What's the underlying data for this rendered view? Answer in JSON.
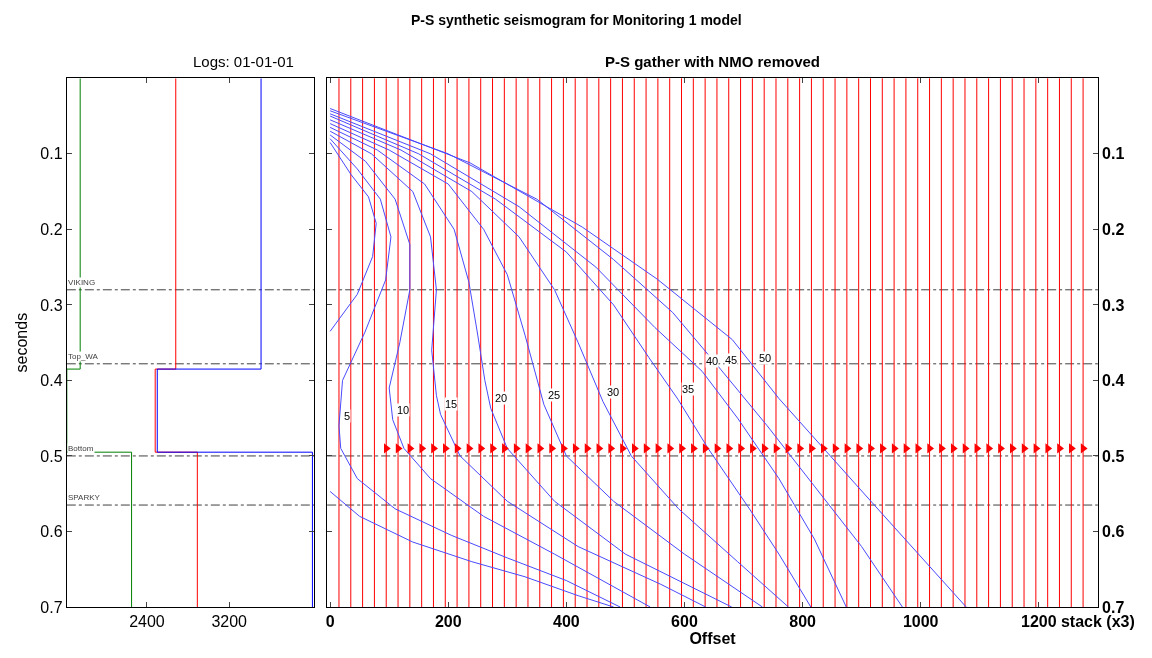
{
  "chart_data": [
    {
      "type": "line",
      "title": "Logs: 01-01-01",
      "ylabel": "seconds",
      "annotations": [
        "P-S synthetic seismogram for Monitoring 1 model"
      ],
      "xlim": [
        1620,
        4030
      ],
      "xticks": [
        2400,
        3200
      ],
      "ylim": [
        0.7,
        0.0
      ],
      "yticks": [
        0.1,
        0.2,
        0.3,
        0.4,
        0.5,
        0.6,
        0.7
      ],
      "grid": false,
      "series": [
        {
          "color": "#008000",
          "x": [
            1750,
            1750,
            1620,
            1620,
            2250,
            2250
          ],
          "values": [
            0.0,
            0.385,
            0.385,
            0.495,
            0.495,
            0.7
          ]
        },
        {
          "color": "#ff0000",
          "x": [
            2680,
            2680,
            2480,
            2480,
            2890,
            2890
          ],
          "values": [
            0.0,
            0.385,
            0.385,
            0.495,
            0.495,
            0.7
          ]
        },
        {
          "color": "#0000ff",
          "x": [
            3510,
            3510,
            2500,
            2500,
            4010,
            4010
          ],
          "values": [
            0.0,
            0.385,
            0.385,
            0.495,
            0.495,
            0.7
          ]
        }
      ],
      "ref_lines": [
        {
          "axis": "y",
          "value": 0.28,
          "label": "VIKING",
          "color": "#404040",
          "line_style": "dashdot"
        },
        {
          "axis": "y",
          "value": 0.378,
          "label": "Top_WA",
          "color": "#404040",
          "line_style": "dashdot"
        },
        {
          "axis": "y",
          "value": 0.5,
          "label": "Bottom",
          "color": "#404040",
          "line_style": "dashdot"
        },
        {
          "axis": "y",
          "value": 0.565,
          "label": "SPARKY",
          "color": "#404040",
          "line_style": "dashdot"
        }
      ]
    },
    {
      "type": "line",
      "title": "P-S gather with NMO removed",
      "xlabel": "Offset",
      "xlim": [
        -5,
        1300
      ],
      "xticks": [
        0,
        200,
        400,
        600,
        800,
        1000,
        1200,
        {
          "value": 1300,
          "label": "stack (x3)"
        }
      ],
      "ylim": [
        0.7,
        0.0
      ],
      "yticks": [
        0.1,
        0.2,
        0.3,
        0.4,
        0.5,
        0.6,
        0.7
      ],
      "grid": false,
      "annotations": [
        {
          "text": "5",
          "x": 17,
          "y": 0.46
        },
        {
          "text": "10",
          "x": 106,
          "y": 0.452
        },
        {
          "text": "15",
          "x": 187,
          "y": 0.445
        },
        {
          "text": "20",
          "x": 272,
          "y": 0.437
        },
        {
          "text": "25",
          "x": 362,
          "y": 0.432
        },
        {
          "text": "30",
          "x": 462,
          "y": 0.428
        },
        {
          "text": "35",
          "x": 589,
          "y": 0.425
        },
        {
          "text": "40",
          "x": 630,
          "y": 0.388
        },
        {
          "text": "45",
          "x": 662,
          "y": 0.386
        },
        {
          "text": "50",
          "x": 719,
          "y": 0.383
        }
      ],
      "series": [
        {
          "color": "#4a4aff",
          "x": [
            0,
            35,
            65,
            78,
            72,
            46,
            0,
            null,
            0,
            50,
            140,
            240,
            330,
            420,
            480
          ],
          "values": [
            0.085,
            0.127,
            0.157,
            0.192,
            0.236,
            0.286,
            0.335,
            null,
            0.547,
            0.58,
            0.614,
            0.64,
            0.66,
            0.685,
            0.7
          ]
        },
        {
          "color": "#4a4aff",
          "x": [
            0,
            46,
            85,
            103,
            94,
            59,
            21,
            15,
            18,
            46,
            110,
            205,
            300,
            400,
            491
          ],
          "values": [
            0.08,
            0.12,
            0.16,
            0.21,
            0.267,
            0.336,
            0.4,
            0.46,
            0.49,
            0.53,
            0.57,
            0.605,
            0.635,
            0.665,
            0.7
          ]
        },
        {
          "color": "#4a4aff",
          "x": [
            0,
            60,
            110,
            135,
            135,
            118,
            100,
            106,
            125,
            170,
            260,
            380,
            542
          ],
          "values": [
            0.075,
            0.11,
            0.16,
            0.22,
            0.28,
            0.35,
            0.41,
            0.452,
            0.49,
            0.53,
            0.58,
            0.63,
            0.7
          ]
        },
        {
          "color": "#4a4aff",
          "x": [
            0,
            70,
            140,
            170,
            180,
            172,
            180,
            187,
            220,
            300,
            420,
            560,
            636
          ],
          "values": [
            0.07,
            0.1,
            0.15,
            0.21,
            0.28,
            0.36,
            0.42,
            0.445,
            0.5,
            0.56,
            0.62,
            0.67,
            0.7
          ]
        },
        {
          "color": "#4a4aff",
          "x": [
            0,
            80,
            160,
            210,
            235,
            250,
            262,
            272,
            300,
            380,
            500,
            680
          ],
          "values": [
            0.065,
            0.095,
            0.14,
            0.2,
            0.27,
            0.34,
            0.4,
            0.437,
            0.49,
            0.56,
            0.63,
            0.7
          ]
        },
        {
          "color": "#4a4aff",
          "x": [
            0,
            100,
            200,
            260,
            300,
            330,
            362,
            400,
            480,
            600,
            732
          ],
          "values": [
            0.06,
            0.095,
            0.14,
            0.2,
            0.26,
            0.34,
            0.432,
            0.5,
            0.56,
            0.63,
            0.7
          ]
        },
        {
          "color": "#4a4aff",
          "x": [
            0,
            120,
            240,
            320,
            380,
            420,
            462,
            510,
            590,
            690,
            776
          ],
          "values": [
            0.055,
            0.095,
            0.15,
            0.21,
            0.28,
            0.35,
            0.428,
            0.5,
            0.57,
            0.64,
            0.7
          ]
        },
        {
          "color": "#4a4aff",
          "x": [
            0,
            150,
            280,
            400,
            480,
            540,
            589,
            640,
            710,
            760,
            814
          ],
          "values": [
            0.05,
            0.1,
            0.16,
            0.23,
            0.3,
            0.37,
            0.425,
            0.49,
            0.57,
            0.63,
            0.7
          ]
        },
        {
          "color": "#4a4aff",
          "x": [
            0,
            170,
            320,
            450,
            550,
            630,
            690,
            760,
            820,
            874
          ],
          "values": [
            0.047,
            0.1,
            0.17,
            0.25,
            0.33,
            0.388,
            0.45,
            0.53,
            0.61,
            0.7
          ]
        },
        {
          "color": "#4a4aff",
          "x": [
            0,
            200,
            350,
            480,
            580,
            662,
            740,
            820,
            900,
            969
          ],
          "values": [
            0.043,
            0.1,
            0.16,
            0.24,
            0.31,
            0.386,
            0.46,
            0.54,
            0.62,
            0.7
          ]
        },
        {
          "color": "#4a4aff",
          "x": [
            0,
            237,
            427,
            554,
            681,
            760,
            918,
            1077
          ],
          "values": [
            0.04,
            0.112,
            0.197,
            0.266,
            0.346,
            0.424,
            0.562,
            0.7
          ]
        },
        {
          "type": "scatter",
          "marker": "triangle",
          "color": "#ff0000",
          "x": [
            95,
            115,
            135,
            155,
            175,
            195,
            215,
            235,
            255,
            275,
            295,
            315,
            335,
            355,
            375,
            395,
            415,
            435,
            455,
            475,
            495,
            515,
            535,
            555,
            575,
            595,
            615,
            635,
            655,
            675,
            695,
            715,
            735,
            755,
            775,
            795,
            815,
            835,
            855,
            875,
            895,
            915,
            935,
            955,
            975,
            995,
            1015,
            1035,
            1055,
            1075,
            1095,
            1115,
            1135,
            1155,
            1175,
            1195,
            1215,
            1235,
            1255,
            1275
          ],
          "values": [
            0.49,
            0.49,
            0.49,
            0.49,
            0.49,
            0.49,
            0.49,
            0.49,
            0.49,
            0.49,
            0.49,
            0.49,
            0.49,
            0.49,
            0.49,
            0.49,
            0.49,
            0.49,
            0.49,
            0.49,
            0.49,
            0.49,
            0.49,
            0.49,
            0.49,
            0.49,
            0.49,
            0.49,
            0.49,
            0.49,
            0.49,
            0.49,
            0.49,
            0.49,
            0.49,
            0.49,
            0.49,
            0.49,
            0.49,
            0.49,
            0.49,
            0.49,
            0.49,
            0.49,
            0.49,
            0.49,
            0.49,
            0.49,
            0.49,
            0.49,
            0.49,
            0.49,
            0.49,
            0.49,
            0.49,
            0.49,
            0.49,
            0.49,
            0.49,
            0.49
          ]
        }
      ],
      "ref_lines": [
        {
          "axis": "y",
          "value": 0.28,
          "color": "#404040",
          "line_style": "dashdot"
        },
        {
          "axis": "y",
          "value": 0.378,
          "color": "#404040",
          "line_style": "dashdot"
        },
        {
          "axis": "y",
          "value": 0.5,
          "color": "#404040",
          "line_style": "dashdot"
        },
        {
          "axis": "y",
          "value": 0.565,
          "color": "#404040",
          "line_style": "dashdot"
        },
        {
          "axis": "x",
          "value": 15,
          "color": "#ff0000"
        },
        {
          "axis": "x",
          "value": 35,
          "color": "#ff0000"
        },
        {
          "axis": "x",
          "value": 55,
          "color": "#ff0000"
        },
        {
          "axis": "x",
          "value": 75,
          "color": "#ff0000"
        },
        {
          "axis": "x",
          "value": 95,
          "color": "#ff0000"
        },
        {
          "axis": "x",
          "value": 115,
          "color": "#ff0000"
        },
        {
          "axis": "x",
          "value": 135,
          "color": "#ff0000"
        },
        {
          "axis": "x",
          "value": 155,
          "color": "#ff0000"
        },
        {
          "axis": "x",
          "value": 175,
          "color": "#ff0000"
        },
        {
          "axis": "x",
          "value": 195,
          "color": "#ff0000"
        },
        {
          "axis": "x",
          "value": 215,
          "color": "#ff0000"
        },
        {
          "axis": "x",
          "value": 235,
          "color": "#ff0000"
        },
        {
          "axis": "x",
          "value": 255,
          "color": "#ff0000"
        },
        {
          "axis": "x",
          "value": 275,
          "color": "#ff0000"
        },
        {
          "axis": "x",
          "value": 295,
          "color": "#ff0000"
        },
        {
          "axis": "x",
          "value": 315,
          "color": "#ff0000"
        },
        {
          "axis": "x",
          "value": 335,
          "color": "#ff0000"
        },
        {
          "axis": "x",
          "value": 355,
          "color": "#ff0000"
        },
        {
          "axis": "x",
          "value": 375,
          "color": "#ff0000"
        },
        {
          "axis": "x",
          "value": 395,
          "color": "#ff0000"
        },
        {
          "axis": "x",
          "value": 415,
          "color": "#ff0000"
        },
        {
          "axis": "x",
          "value": 435,
          "color": "#ff0000"
        },
        {
          "axis": "x",
          "value": 455,
          "color": "#ff0000"
        },
        {
          "axis": "x",
          "value": 475,
          "color": "#ff0000"
        },
        {
          "axis": "x",
          "value": 495,
          "color": "#ff0000"
        },
        {
          "axis": "x",
          "value": 515,
          "color": "#ff0000"
        },
        {
          "axis": "x",
          "value": 535,
          "color": "#ff0000"
        },
        {
          "axis": "x",
          "value": 555,
          "color": "#ff0000"
        },
        {
          "axis": "x",
          "value": 575,
          "color": "#ff0000"
        },
        {
          "axis": "x",
          "value": 595,
          "color": "#ff0000"
        },
        {
          "axis": "x",
          "value": 615,
          "color": "#ff0000"
        },
        {
          "axis": "x",
          "value": 635,
          "color": "#ff0000"
        },
        {
          "axis": "x",
          "value": 655,
          "color": "#ff0000"
        },
        {
          "axis": "x",
          "value": 675,
          "color": "#ff0000"
        },
        {
          "axis": "x",
          "value": 695,
          "color": "#ff0000"
        },
        {
          "axis": "x",
          "value": 715,
          "color": "#ff0000"
        },
        {
          "axis": "x",
          "value": 735,
          "color": "#ff0000"
        },
        {
          "axis": "x",
          "value": 755,
          "color": "#ff0000"
        },
        {
          "axis": "x",
          "value": 775,
          "color": "#ff0000"
        },
        {
          "axis": "x",
          "value": 795,
          "color": "#ff0000"
        },
        {
          "axis": "x",
          "value": 815,
          "color": "#ff0000"
        },
        {
          "axis": "x",
          "value": 835,
          "color": "#ff0000"
        },
        {
          "axis": "x",
          "value": 855,
          "color": "#ff0000"
        },
        {
          "axis": "x",
          "value": 875,
          "color": "#ff0000"
        },
        {
          "axis": "x",
          "value": 895,
          "color": "#ff0000"
        },
        {
          "axis": "x",
          "value": 915,
          "color": "#ff0000"
        },
        {
          "axis": "x",
          "value": 935,
          "color": "#ff0000"
        },
        {
          "axis": "x",
          "value": 955,
          "color": "#ff0000"
        },
        {
          "axis": "x",
          "value": 975,
          "color": "#ff0000"
        },
        {
          "axis": "x",
          "value": 995,
          "color": "#ff0000"
        },
        {
          "axis": "x",
          "value": 1015,
          "color": "#ff0000"
        },
        {
          "axis": "x",
          "value": 1035,
          "color": "#ff0000"
        },
        {
          "axis": "x",
          "value": 1055,
          "color": "#ff0000"
        },
        {
          "axis": "x",
          "value": 1075,
          "color": "#ff0000"
        },
        {
          "axis": "x",
          "value": 1095,
          "color": "#ff0000"
        },
        {
          "axis": "x",
          "value": 1115,
          "color": "#ff0000"
        },
        {
          "axis": "x",
          "value": 1135,
          "color": "#ff0000"
        },
        {
          "axis": "x",
          "value": 1155,
          "color": "#ff0000"
        },
        {
          "axis": "x",
          "value": 1175,
          "color": "#ff0000"
        },
        {
          "axis": "x",
          "value": 1195,
          "color": "#ff0000"
        },
        {
          "axis": "x",
          "value": 1215,
          "color": "#ff0000"
        },
        {
          "axis": "x",
          "value": 1235,
          "color": "#ff0000"
        },
        {
          "axis": "x",
          "value": 1255,
          "color": "#ff0000"
        },
        {
          "axis": "x",
          "value": 1275,
          "color": "#ff0000"
        }
      ]
    }
  ]
}
